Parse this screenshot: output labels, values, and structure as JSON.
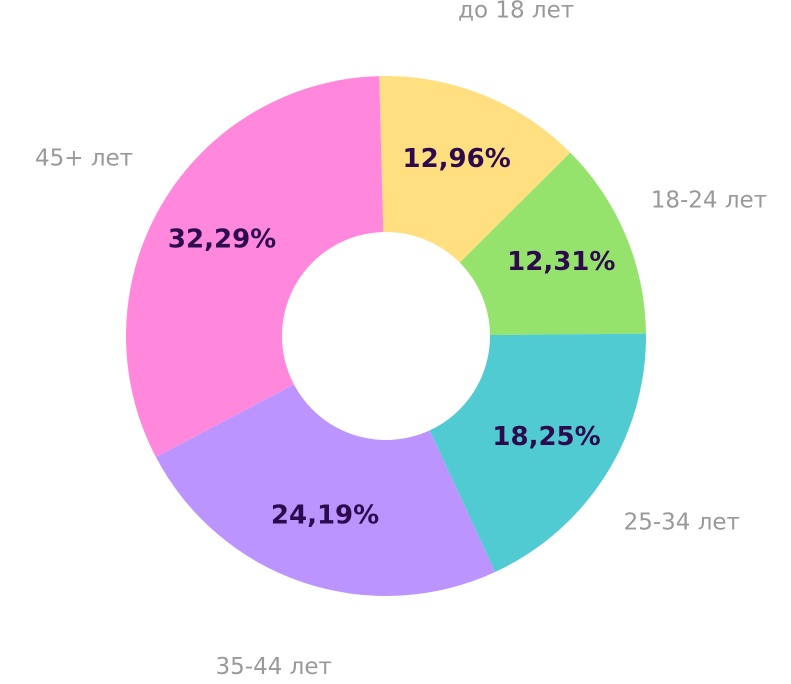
{
  "chart_data": {
    "type": "donut",
    "categories": [
      "до 18 лет",
      "18-24 лет",
      "25-34 лет",
      "35-44 лет",
      "45+ лет"
    ],
    "values": [
      12.96,
      12.31,
      18.25,
      24.19,
      32.29
    ],
    "value_labels": [
      "12,96%",
      "12,31%",
      "18,25%",
      "24,19%",
      "32,29%"
    ],
    "colors": [
      "#ffdf80",
      "#95e36c",
      "#4fcbd1",
      "#bb94ff",
      "#ff88dd"
    ]
  }
}
